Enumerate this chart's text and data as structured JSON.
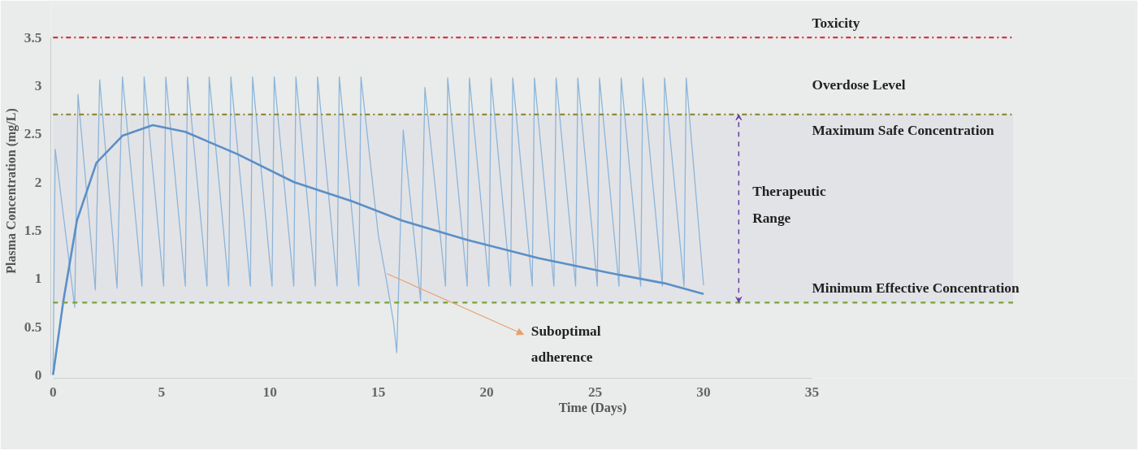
{
  "chart_data": {
    "type": "line",
    "xlabel": "Time (Days)",
    "ylabel": "Plasma Concentration (mg/L)",
    "xlim": [
      0,
      35
    ],
    "xticks": [
      0,
      5,
      10,
      15,
      20,
      25,
      30,
      35
    ],
    "ylim": [
      0,
      3.5
    ],
    "yticks": [
      0,
      0.5,
      1,
      1.5,
      2,
      2.5,
      3,
      3.5
    ],
    "grid": false,
    "marker": "none",
    "line_style": "solid",
    "series": [
      {
        "color": "#8db5da",
        "x": [
          0,
          0.1,
          1.0,
          1.15,
          1.95,
          2.15,
          2.95,
          3.2,
          4.1,
          4.2,
          5.1,
          5.2,
          6.1,
          6.2,
          7.1,
          7.2,
          8.1,
          8.2,
          9.1,
          9.2,
          10.1,
          10.2,
          11.1,
          11.2,
          12.1,
          12.2,
          13.1,
          13.2,
          14.1,
          14.2,
          15.0,
          15.4,
          15.7,
          15.85,
          16.15,
          16.95,
          17.15,
          18.1,
          18.2,
          19.1,
          19.2,
          20.1,
          20.2,
          21.1,
          21.2,
          22.1,
          22.2,
          23.1,
          23.2,
          24.1,
          24.2,
          25.1,
          25.2,
          26.1,
          26.2,
          27.1,
          27.2,
          28.1,
          28.2,
          29.1,
          29.2,
          30.0
        ],
        "values": [
          0,
          2.34,
          0.7,
          2.91,
          0.88,
          3.06,
          0.9,
          3.09,
          0.92,
          3.09,
          0.92,
          3.09,
          0.92,
          3.09,
          0.92,
          3.09,
          0.92,
          3.09,
          0.92,
          3.09,
          0.92,
          3.09,
          0.92,
          3.09,
          0.92,
          3.09,
          0.92,
          3.09,
          0.92,
          3.09,
          1.45,
          0.95,
          0.55,
          0.23,
          2.54,
          0.77,
          2.98,
          0.92,
          3.08,
          0.92,
          3.08,
          0.92,
          3.08,
          0.92,
          3.08,
          0.92,
          3.08,
          0.92,
          3.08,
          0.92,
          3.08,
          0.92,
          3.08,
          0.92,
          3.08,
          0.92,
          3.08,
          0.92,
          3.08,
          0.92,
          3.08,
          0.93
        ]
      },
      {
        "color": "#5b8fc7",
        "x": [
          0,
          0.47,
          1.1,
          2.0,
          3.2,
          4.6,
          6.1,
          8.5,
          11.1,
          13.8,
          16.1,
          19.1,
          22.4,
          25.6,
          28.2,
          30.0
        ],
        "values": [
          0,
          0.76,
          1.6,
          2.2,
          2.48,
          2.59,
          2.52,
          2.29,
          2.0,
          1.8,
          1.6,
          1.4,
          1.21,
          1.06,
          0.95,
          0.84
        ]
      }
    ],
    "ref_lines": [
      {
        "axis": "y",
        "value": 3.5,
        "label": "Toxicity",
        "color": "#d9334a",
        "line_style": "dashdot"
      },
      {
        "axis": "y",
        "value": 2.7,
        "label": "Maximum Safe Concentration",
        "color": "#8f8a3a",
        "line_style": "dashdot"
      },
      {
        "axis": "y",
        "value": 0.75,
        "label": "Minimum Effective Concentration",
        "color": "#7aa33a",
        "line_style": "dashed"
      }
    ],
    "bands": [
      {
        "axis": "y",
        "from": 0.75,
        "to": 2.7,
        "label": "Therapeutic Range",
        "color": "#6a3fa0"
      }
    ],
    "annotations": [
      "Overdose Level",
      {
        "text": "Suboptimal adherence",
        "x": 15.4,
        "y": 1.05
      }
    ]
  }
}
